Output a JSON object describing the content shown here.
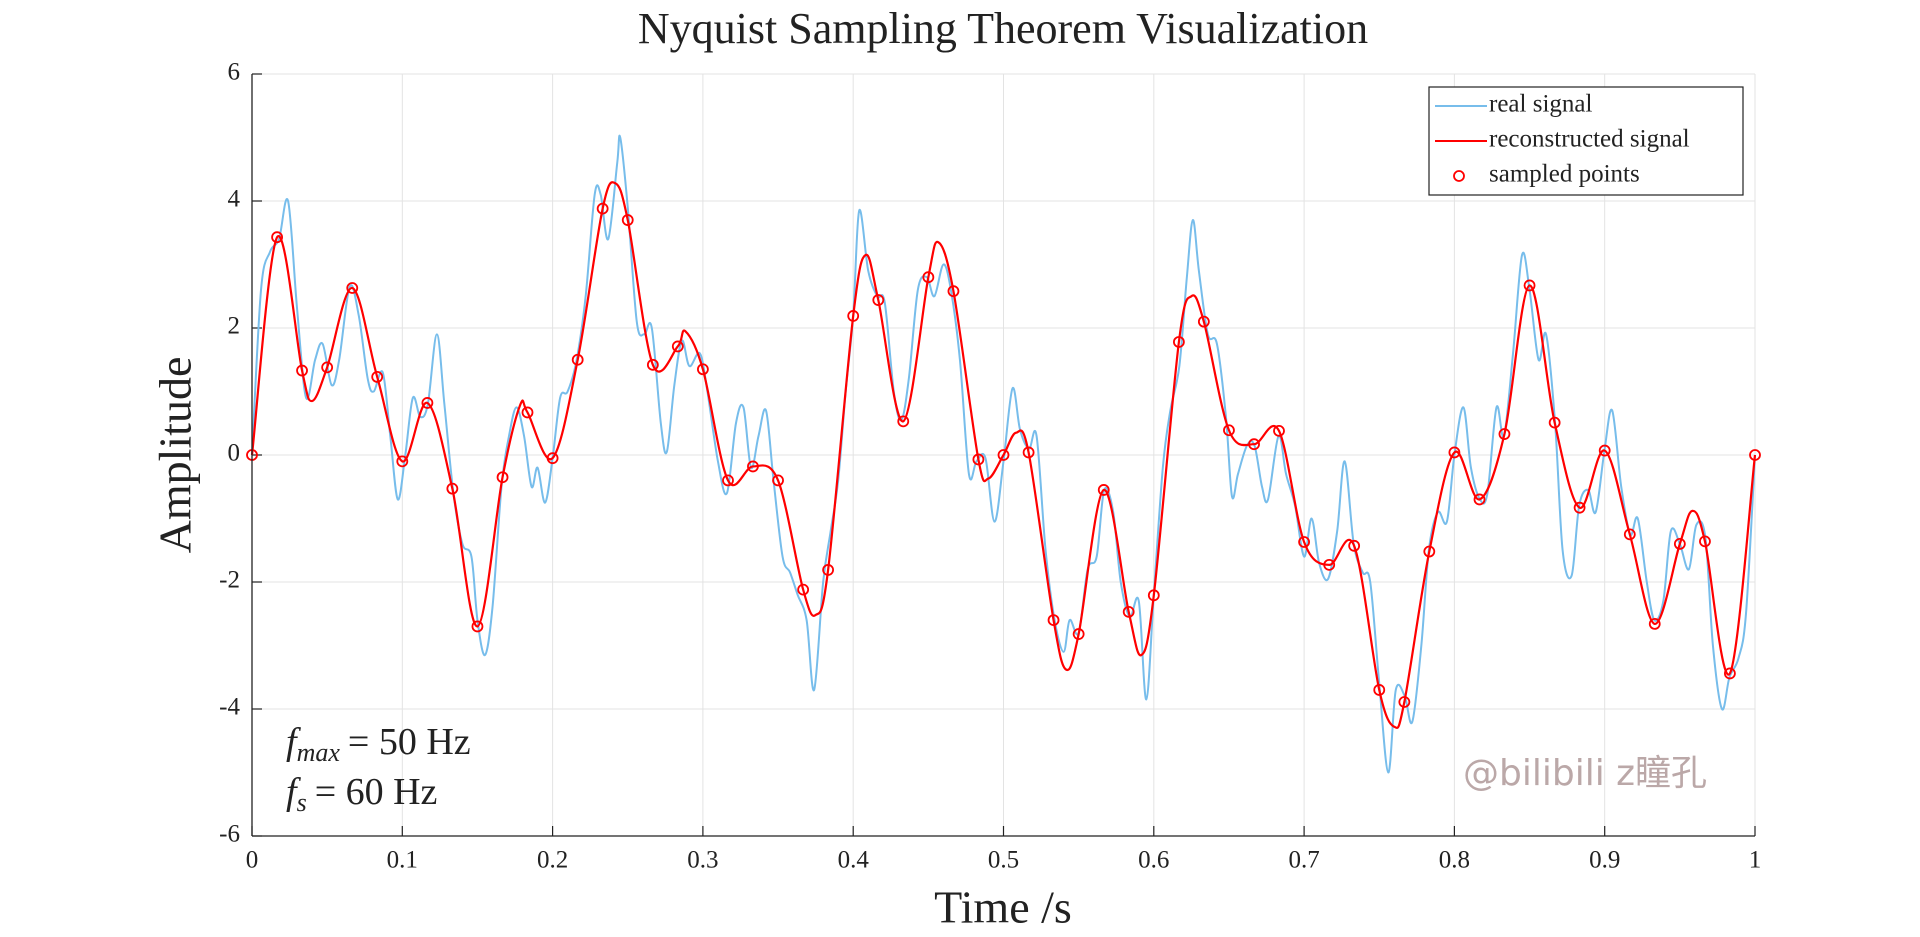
{
  "chart_data": {
    "type": "line",
    "title": "Nyquist Sampling Theorem Visualization",
    "x_label": "Time /s",
    "y_label": "Amplitude",
    "xlim": [
      0,
      1
    ],
    "ylim": [
      -6,
      6
    ],
    "xticks": [
      0,
      0.1,
      0.2,
      0.3,
      0.4,
      0.5,
      0.6,
      0.7,
      0.8,
      0.9,
      1
    ],
    "yticks": [
      -6,
      -4,
      -2,
      0,
      2,
      4,
      6
    ],
    "grid": true,
    "legend": "northeast",
    "annotations": [
      {
        "symbol": "f",
        "subscript": "max",
        "rest": "= 50 Hz"
      },
      {
        "symbol": "f",
        "subscript": "s",
        "rest": "= 60 Hz"
      }
    ],
    "watermark": "@bilibili z瞳孔",
    "series": [
      {
        "name": "real signal",
        "style": "line",
        "color": "#77bdeb",
        "x": [
          0,
          0.006,
          0.012,
          0.018,
          0.024,
          0.03,
          0.036,
          0.042,
          0.047,
          0.053,
          0.058,
          0.065,
          0.071,
          0.077,
          0.081,
          0.087,
          0.092,
          0.097,
          0.102,
          0.107,
          0.112,
          0.117,
          0.123,
          0.128,
          0.134,
          0.14,
          0.146,
          0.15,
          0.155,
          0.16,
          0.166,
          0.171,
          0.176,
          0.181,
          0.186,
          0.19,
          0.195,
          0.2,
          0.205,
          0.21,
          0.216,
          0.222,
          0.228,
          0.232,
          0.237,
          0.243,
          0.245,
          0.25,
          0.256,
          0.261,
          0.266,
          0.272,
          0.276,
          0.281,
          0.286,
          0.291,
          0.298,
          0.303,
          0.31,
          0.316,
          0.322,
          0.327,
          0.332,
          0.337,
          0.342,
          0.347,
          0.353,
          0.358,
          0.363,
          0.369,
          0.374,
          0.38,
          0.385,
          0.39,
          0.395,
          0.4,
          0.404,
          0.41,
          0.416,
          0.421,
          0.427,
          0.432,
          0.437,
          0.443,
          0.449,
          0.454,
          0.46,
          0.465,
          0.471,
          0.477,
          0.482,
          0.488,
          0.494,
          0.5,
          0.506,
          0.511,
          0.517,
          0.522,
          0.528,
          0.534,
          0.54,
          0.544,
          0.55,
          0.556,
          0.562,
          0.567,
          0.573,
          0.578,
          0.584,
          0.59,
          0.595,
          0.6,
          0.606,
          0.611,
          0.617,
          0.622,
          0.626,
          0.63,
          0.636,
          0.642,
          0.648,
          0.652,
          0.656,
          0.662,
          0.667,
          0.672,
          0.676,
          0.683,
          0.688,
          0.694,
          0.7,
          0.705,
          0.71,
          0.716,
          0.722,
          0.727,
          0.733,
          0.739,
          0.744,
          0.75,
          0.756,
          0.761,
          0.767,
          0.772,
          0.778,
          0.783,
          0.789,
          0.795,
          0.8,
          0.806,
          0.811,
          0.817,
          0.822,
          0.828,
          0.833,
          0.839,
          0.845,
          0.85,
          0.856,
          0.861,
          0.867,
          0.872,
          0.878,
          0.883,
          0.889,
          0.894,
          0.9,
          0.905,
          0.911,
          0.917,
          0.922,
          0.928,
          0.933,
          0.939,
          0.944,
          0.95,
          0.956,
          0.961,
          0.967,
          0.972,
          0.978,
          0.983,
          0.989,
          0.994,
          1
        ],
        "values": [
          0,
          2.6,
          3.2,
          3.4,
          4.0,
          2.3,
          0.9,
          1.5,
          1.75,
          1.1,
          1.5,
          2.65,
          2.2,
          1.2,
          1.0,
          1.3,
          0.3,
          -0.7,
          0.0,
          0.9,
          0.6,
          0.8,
          1.9,
          0.8,
          -0.6,
          -1.4,
          -1.6,
          -2.6,
          -3.15,
          -2.4,
          -0.5,
          0.3,
          0.75,
          0.3,
          -0.5,
          -0.2,
          -0.75,
          -0.05,
          0.9,
          1.0,
          1.5,
          2.5,
          4.1,
          4.1,
          3.4,
          4.6,
          5.0,
          3.9,
          2.1,
          1.9,
          2.0,
          0.5,
          0.05,
          1.1,
          1.8,
          1.4,
          1.6,
          1.0,
          -0.1,
          -0.6,
          0.5,
          0.75,
          -0.2,
          0.3,
          0.7,
          -0.4,
          -1.6,
          -1.85,
          -2.2,
          -2.6,
          -3.7,
          -2.0,
          -1.2,
          -0.4,
          1.0,
          2.2,
          3.85,
          2.9,
          2.5,
          2.4,
          1.0,
          0.55,
          1.2,
          2.6,
          2.8,
          2.5,
          3.0,
          2.6,
          1.5,
          -0.3,
          -0.1,
          -0.05,
          -1.05,
          -0.1,
          1.05,
          0.4,
          0.1,
          0.3,
          -1.5,
          -2.6,
          -3.1,
          -2.6,
          -2.8,
          -1.8,
          -1.6,
          -0.55,
          -0.9,
          -2.0,
          -2.55,
          -2.3,
          -3.85,
          -2.2,
          -0.2,
          0.7,
          1.4,
          2.8,
          3.7,
          2.9,
          1.9,
          1.75,
          0.6,
          -0.65,
          -0.3,
          0.15,
          0.15,
          -0.5,
          -0.7,
          0.3,
          -0.3,
          -0.8,
          -1.6,
          -1.0,
          -1.7,
          -1.95,
          -1.2,
          -0.1,
          -1.4,
          -1.85,
          -2.0,
          -3.6,
          -5.0,
          -3.7,
          -3.8,
          -4.2,
          -3.0,
          -1.5,
          -0.9,
          -1.05,
          0.0,
          0.75,
          -0.2,
          -0.7,
          -0.6,
          0.75,
          0.3,
          1.6,
          3.15,
          2.6,
          1.5,
          1.9,
          0.5,
          -1.5,
          -1.9,
          -0.8,
          -0.55,
          -0.9,
          0.1,
          0.7,
          -0.5,
          -1.25,
          -1.0,
          -2.0,
          -2.6,
          -2.3,
          -1.2,
          -1.4,
          -1.8,
          -1.1,
          -1.3,
          -3.0,
          -4.0,
          -3.5,
          -3.2,
          -2.5,
          0
        ]
      },
      {
        "name": "reconstructed signal",
        "style": "line",
        "color": "#ff0000",
        "x": [
          0,
          0.0167,
          0.0333,
          0.04,
          0.05,
          0.0667,
          0.0833,
          0.1,
          0.1167,
          0.1333,
          0.15,
          0.1667,
          0.1783,
          0.1833,
          0.2,
          0.2167,
          0.2333,
          0.2417,
          0.25,
          0.2667,
          0.2833,
          0.2883,
          0.3,
          0.3167,
          0.3333,
          0.35,
          0.3667,
          0.375,
          0.3833,
          0.4,
          0.4083,
          0.4167,
          0.4333,
          0.45,
          0.4567,
          0.4667,
          0.4833,
          0.49,
          0.5,
          0.5083,
          0.5167,
          0.5333,
          0.5417,
          0.55,
          0.5667,
          0.5833,
          0.5917,
          0.6,
          0.6167,
          0.625,
          0.6333,
          0.65,
          0.6667,
          0.6833,
          0.7,
          0.7167,
          0.7333,
          0.75,
          0.76,
          0.7667,
          0.7833,
          0.8,
          0.8167,
          0.8333,
          0.85,
          0.8667,
          0.8833,
          0.9,
          0.9167,
          0.9333,
          0.95,
          0.9583,
          0.9667,
          0.9833,
          1
        ],
        "values": [
          0,
          3.43,
          1.33,
          0.85,
          1.38,
          2.63,
          1.23,
          -0.1,
          0.82,
          -0.53,
          -2.7,
          -0.35,
          0.78,
          0.67,
          -0.05,
          1.5,
          3.88,
          4.28,
          3.7,
          1.42,
          1.71,
          1.95,
          1.35,
          -0.4,
          -0.18,
          -0.4,
          -2.12,
          -2.52,
          -1.81,
          2.19,
          3.15,
          2.44,
          0.53,
          2.8,
          3.35,
          2.58,
          -0.07,
          -0.37,
          0,
          0.35,
          0.04,
          -2.6,
          -3.38,
          -2.82,
          -0.55,
          -2.47,
          -3.15,
          -2.21,
          1.78,
          2.5,
          2.1,
          0.39,
          0.17,
          0.38,
          -1.37,
          -1.73,
          -1.43,
          -3.7,
          -4.28,
          -3.89,
          -1.52,
          0.04,
          -0.7,
          0.33,
          2.67,
          0.51,
          -0.83,
          0.07,
          -1.25,
          -2.66,
          -1.4,
          -0.88,
          -1.36,
          -3.44,
          0
        ]
      },
      {
        "name": "sampled points",
        "style": "marker",
        "color": "#ff0000",
        "x": [
          0,
          0.0167,
          0.0333,
          0.05,
          0.0667,
          0.0833,
          0.1,
          0.1167,
          0.1333,
          0.15,
          0.1667,
          0.1833,
          0.2,
          0.2167,
          0.2333,
          0.25,
          0.2667,
          0.2833,
          0.3,
          0.3167,
          0.3333,
          0.35,
          0.3667,
          0.3833,
          0.4,
          0.4167,
          0.4333,
          0.45,
          0.4667,
          0.4833,
          0.5,
          0.5167,
          0.5333,
          0.55,
          0.5667,
          0.5833,
          0.6,
          0.6167,
          0.6333,
          0.65,
          0.6667,
          0.6833,
          0.7,
          0.7167,
          0.7333,
          0.75,
          0.7667,
          0.7833,
          0.8,
          0.8167,
          0.8333,
          0.85,
          0.8667,
          0.8833,
          0.9,
          0.9167,
          0.9333,
          0.95,
          0.9667,
          0.9833,
          1
        ],
        "values": [
          0,
          3.43,
          1.33,
          1.38,
          2.63,
          1.23,
          -0.1,
          0.82,
          -0.53,
          -2.7,
          -0.35,
          0.67,
          -0.05,
          1.5,
          3.88,
          3.7,
          1.42,
          1.71,
          1.35,
          -0.4,
          -0.18,
          -0.4,
          -2.12,
          -1.81,
          2.19,
          2.44,
          0.53,
          2.8,
          2.58,
          -0.07,
          0,
          0.04,
          -2.6,
          -2.82,
          -0.55,
          -2.47,
          -2.21,
          1.78,
          2.1,
          0.39,
          0.17,
          0.38,
          -1.37,
          -1.73,
          -1.43,
          -3.7,
          -3.89,
          -1.52,
          0.04,
          -0.7,
          0.33,
          2.67,
          0.51,
          -0.83,
          0.07,
          -1.25,
          -2.66,
          -1.4,
          -1.36,
          -3.44,
          0
        ]
      }
    ]
  }
}
